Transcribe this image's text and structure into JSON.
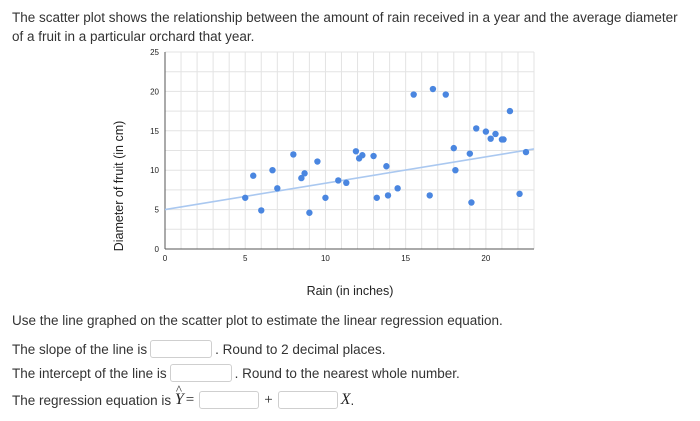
{
  "intro": "The scatter plot shows the relationship between the amount of rain received in a year and the average diameter of a fruit in a particular orchard that year.",
  "instruction": "Use the line graphed on the scatter plot to estimate the linear regression equation.",
  "slope": {
    "label": "The slope of the line is",
    "note": ". Round to 2 decimal places."
  },
  "intercept": {
    "label": "The intercept of the line is",
    "note": ". Round to the nearest whole number."
  },
  "equation": {
    "label": "The regression equation is",
    "y_symbol": "Y",
    "hat": "^",
    "equals": "=",
    "plus": "+",
    "x_symbol": "X",
    "end": "."
  },
  "colors": {
    "point": "#4a86e0",
    "line": "#aac8f0",
    "grid": "#e3e3e3",
    "axis": "#555555"
  },
  "chart_data": {
    "type": "scatter",
    "xlabel": "Rain (in inches)",
    "ylabel": "Diameter of fruit (in cm)",
    "xlim": [
      0,
      23
    ],
    "ylim": [
      0,
      25
    ],
    "xticks": [
      0,
      5,
      10,
      15,
      20
    ],
    "yticks": [
      0,
      5,
      10,
      15,
      20,
      25
    ],
    "grid": true,
    "x": [
      5,
      5.5,
      6,
      6.7,
      7,
      8,
      8.5,
      8.7,
      9,
      9.5,
      10,
      10.8,
      11.3,
      11.9,
      12.1,
      12.3,
      13,
      13.2,
      13.8,
      13.9,
      14.5,
      15.5,
      16.5,
      16.7,
      17.5,
      18,
      18.1,
      19,
      19.1,
      19.4,
      20,
      20.3,
      20.6,
      21,
      21.1,
      21.5,
      22.1,
      22.5
    ],
    "y": [
      6.5,
      9.3,
      4.9,
      10,
      7.7,
      12,
      9,
      9.6,
      4.6,
      11.1,
      6.5,
      8.7,
      8.4,
      12.4,
      11.5,
      11.9,
      11.8,
      6.5,
      10.5,
      6.8,
      7.7,
      19.6,
      6.8,
      20.3,
      19.6,
      12.8,
      10,
      12.1,
      5.9,
      15.3,
      14.9,
      14,
      14.6,
      13.9,
      13.9,
      17.5,
      7,
      12.3
    ],
    "regression_line": {
      "x": [
        0,
        23
      ],
      "y": [
        5,
        12.7
      ]
    }
  }
}
